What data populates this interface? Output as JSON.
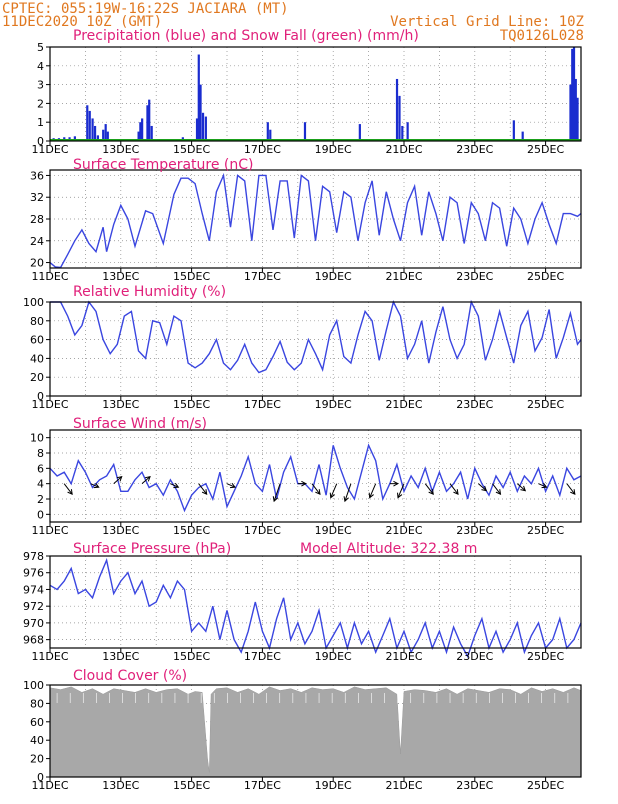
{
  "header": {
    "station": "CPTEC:   055:19W-16:22S   JACIARA (MT)",
    "run": "11DEC2020 10Z (GMT)",
    "grid_note": "Vertical Grid Line: 10Z",
    "code": "TQ0126L028",
    "model_altitude": "Model Altitude: 322.38 m"
  },
  "colors": {
    "header": "#e07820",
    "title": "#e0207a",
    "rain": "#1a2ccf",
    "snow": "#1aa01a",
    "line": "#3a46e0",
    "cloud": "#a8a8a8",
    "axis": "#000000",
    "grid": "#888888"
  },
  "x_ticks": [
    "11DEC",
    "13DEC",
    "15DEC",
    "17DEC",
    "19DEC",
    "21DEC",
    "23DEC",
    "25DEC"
  ],
  "chart_data": [
    {
      "id": "precip",
      "type": "bar",
      "title": "Precipitation (blue) and Snow Fall (green) (mm/h)",
      "x_start_day": 11,
      "x_end_day": 26,
      "ylim": [
        0,
        5
      ],
      "yticks": [
        "0",
        "1",
        "2",
        "3",
        "4",
        "5"
      ],
      "series": [
        {
          "name": "Precipitation",
          "color": "blue",
          "bars": [
            [
              11.1,
              0.15
            ],
            [
              11.25,
              0.15
            ],
            [
              11.4,
              0.2
            ],
            [
              11.55,
              0.2
            ],
            [
              11.7,
              0.25
            ],
            [
              12.05,
              1.9
            ],
            [
              12.12,
              1.6
            ],
            [
              12.2,
              1.2
            ],
            [
              12.27,
              0.8
            ],
            [
              12.35,
              0.3
            ],
            [
              12.5,
              0.6
            ],
            [
              12.57,
              0.9
            ],
            [
              12.63,
              0.5
            ],
            [
              13.5,
              0.5
            ],
            [
              13.55,
              1.0
            ],
            [
              13.6,
              1.2
            ],
            [
              13.75,
              1.9
            ],
            [
              13.8,
              2.2
            ],
            [
              13.87,
              0.8
            ],
            [
              14.75,
              0.2
            ],
            [
              15.0,
              0.1
            ],
            [
              15.15,
              1.2
            ],
            [
              15.2,
              4.6
            ],
            [
              15.25,
              3.0
            ],
            [
              15.32,
              1.5
            ],
            [
              15.4,
              1.3
            ],
            [
              17.15,
              1.0
            ],
            [
              17.22,
              0.6
            ],
            [
              18.2,
              1.0
            ],
            [
              19.75,
              0.9
            ],
            [
              20.8,
              3.3
            ],
            [
              20.87,
              2.4
            ],
            [
              20.95,
              0.8
            ],
            [
              21.1,
              1.0
            ],
            [
              24.1,
              1.1
            ],
            [
              24.35,
              0.5
            ],
            [
              25.7,
              3.0
            ],
            [
              25.75,
              4.9
            ],
            [
              25.8,
              5.0
            ],
            [
              25.85,
              3.3
            ],
            [
              25.9,
              2.3
            ]
          ]
        },
        {
          "name": "Snow Fall",
          "color": "green",
          "values": [
            0
          ]
        }
      ]
    },
    {
      "id": "temp",
      "type": "line",
      "title": "Surface Temperature (nC)",
      "x_start_day": 11,
      "x_end_day": 26,
      "ylim": [
        19,
        37
      ],
      "yticks": [
        "20",
        "24",
        "28",
        "32",
        "36"
      ],
      "x": [
        11.0,
        11.15,
        11.3,
        11.5,
        11.7,
        11.9,
        12.1,
        12.3,
        12.5,
        12.6,
        12.8,
        13.0,
        13.2,
        13.4,
        13.7,
        13.9,
        14.2,
        14.5,
        14.7,
        14.9,
        15.1,
        15.3,
        15.5,
        15.7,
        15.9,
        16.1,
        16.3,
        16.5,
        16.7,
        16.9,
        17.1,
        17.3,
        17.5,
        17.7,
        17.9,
        18.1,
        18.3,
        18.5,
        18.7,
        18.9,
        19.1,
        19.3,
        19.5,
        19.7,
        19.9,
        20.1,
        20.3,
        20.5,
        20.7,
        20.9,
        21.1,
        21.3,
        21.5,
        21.7,
        21.9,
        22.1,
        22.3,
        22.5,
        22.7,
        22.9,
        23.1,
        23.3,
        23.5,
        23.7,
        23.9,
        24.1,
        24.3,
        24.5,
        24.7,
        24.9,
        25.1,
        25.3,
        25.5,
        25.7,
        25.9,
        26.0
      ],
      "y": [
        20,
        19.2,
        19.1,
        21.5,
        24,
        26,
        23.5,
        22,
        26.5,
        22,
        27,
        30.5,
        28,
        23,
        29.5,
        29,
        23.5,
        32.5,
        35.5,
        35.5,
        34.5,
        29,
        24,
        33,
        36,
        26.5,
        36,
        35,
        24,
        36,
        36,
        26,
        35,
        35,
        24.5,
        36,
        35,
        24,
        34,
        33,
        25.5,
        33,
        32,
        24,
        31,
        35,
        25,
        33,
        28,
        24,
        31,
        34,
        25,
        33,
        29,
        24,
        32,
        31,
        23.5,
        31,
        29,
        24,
        31,
        30,
        23,
        30,
        28,
        23.5,
        28,
        31,
        27,
        23.5,
        29,
        29,
        28.5,
        29
      ]
    },
    {
      "id": "rh",
      "type": "line",
      "title": "Relative Humidity (%)",
      "x_start_day": 11,
      "x_end_day": 26,
      "ylim": [
        0,
        100
      ],
      "yticks": [
        "0",
        "20",
        "40",
        "60",
        "80",
        "100"
      ],
      "x": [
        11.0,
        11.3,
        11.5,
        11.7,
        11.9,
        12.1,
        12.3,
        12.5,
        12.7,
        12.9,
        13.1,
        13.3,
        13.5,
        13.7,
        13.9,
        14.1,
        14.3,
        14.5,
        14.7,
        14.9,
        15.1,
        15.3,
        15.5,
        15.7,
        15.9,
        16.1,
        16.3,
        16.5,
        16.7,
        16.9,
        17.1,
        17.3,
        17.5,
        17.7,
        17.9,
        18.1,
        18.3,
        18.5,
        18.7,
        18.9,
        19.1,
        19.3,
        19.5,
        19.7,
        19.9,
        20.1,
        20.3,
        20.5,
        20.7,
        20.9,
        21.1,
        21.3,
        21.5,
        21.7,
        21.9,
        22.1,
        22.3,
        22.5,
        22.7,
        22.9,
        23.1,
        23.3,
        23.5,
        23.7,
        23.9,
        24.1,
        24.3,
        24.5,
        24.7,
        24.9,
        25.1,
        25.3,
        25.5,
        25.7,
        25.9,
        26.0
      ],
      "y": [
        100,
        100,
        85,
        65,
        75,
        100,
        90,
        60,
        45,
        55,
        85,
        90,
        48,
        40,
        80,
        78,
        55,
        85,
        80,
        35,
        30,
        35,
        45,
        60,
        35,
        28,
        38,
        55,
        35,
        25,
        28,
        42,
        58,
        36,
        28,
        35,
        60,
        45,
        28,
        65,
        80,
        42,
        35,
        65,
        90,
        80,
        38,
        70,
        100,
        85,
        40,
        55,
        80,
        35,
        68,
        95,
        60,
        40,
        55,
        100,
        85,
        38,
        60,
        90,
        62,
        35,
        75,
        90,
        48,
        62,
        92,
        40,
        62,
        88,
        55,
        60
      ]
    },
    {
      "id": "wind",
      "type": "line",
      "title": "Surface Wind (m/s)",
      "x_start_day": 11,
      "x_end_day": 26,
      "ylim": [
        -1,
        11
      ],
      "yticks": [
        "0",
        "2",
        "4",
        "6",
        "8",
        "10"
      ],
      "x": [
        11.0,
        11.2,
        11.4,
        11.6,
        11.8,
        12.0,
        12.2,
        12.4,
        12.6,
        12.8,
        13.0,
        13.2,
        13.4,
        13.6,
        13.8,
        14.0,
        14.2,
        14.4,
        14.6,
        14.8,
        15.0,
        15.2,
        15.4,
        15.6,
        15.8,
        16.0,
        16.2,
        16.4,
        16.6,
        16.8,
        17.0,
        17.2,
        17.4,
        17.6,
        17.8,
        18.0,
        18.2,
        18.4,
        18.6,
        18.8,
        19.0,
        19.2,
        19.4,
        19.6,
        19.8,
        20.0,
        20.2,
        20.4,
        20.6,
        20.8,
        21.0,
        21.2,
        21.4,
        21.6,
        21.8,
        22.0,
        22.2,
        22.4,
        22.6,
        22.8,
        23.0,
        23.2,
        23.4,
        23.6,
        23.8,
        24.0,
        24.2,
        24.4,
        24.6,
        24.8,
        25.0,
        25.2,
        25.4,
        25.6,
        25.8,
        26.0
      ],
      "y": [
        6,
        5,
        5.5,
        4,
        7,
        5.5,
        3.5,
        4.5,
        5,
        6.5,
        3,
        3,
        4.5,
        5.5,
        3.5,
        4,
        2.5,
        4.5,
        3,
        0.5,
        2.5,
        3.5,
        4,
        2,
        5.5,
        1,
        3,
        5,
        7.5,
        4,
        3,
        6.5,
        2,
        5.5,
        7.5,
        4,
        4,
        3,
        6.5,
        2.5,
        9,
        6,
        3.5,
        2,
        5.5,
        9,
        7,
        2,
        4,
        6.5,
        3,
        5,
        3.5,
        6,
        3,
        5.5,
        3,
        4,
        5.5,
        2,
        6,
        4,
        2.5,
        5,
        3.5,
        5.5,
        3,
        5,
        4,
        6,
        3,
        5,
        2.5,
        6,
        4.5,
        5
      ],
      "arrows": [
        [
          11.4,
          -3
        ],
        [
          12.15,
          -1
        ],
        [
          12.8,
          2
        ],
        [
          13.6,
          2
        ],
        [
          14.4,
          -1
        ],
        [
          15.2,
          -3
        ],
        [
          16.0,
          -1
        ],
        [
          17.5,
          -5
        ],
        [
          18.0,
          0
        ],
        [
          18.4,
          -3
        ],
        [
          19.1,
          -4
        ],
        [
          19.5,
          -5
        ],
        [
          20.2,
          -4
        ],
        [
          20.6,
          0
        ],
        [
          21.0,
          -4
        ],
        [
          21.6,
          -3
        ],
        [
          22.3,
          -3
        ],
        [
          23.1,
          -2
        ],
        [
          23.5,
          -3
        ],
        [
          24.2,
          -2
        ],
        [
          24.8,
          -1
        ],
        [
          25.6,
          -3
        ]
      ]
    },
    {
      "id": "pres",
      "type": "line",
      "title": "Surface Pressure (hPa)",
      "x_start_day": 11,
      "x_end_day": 26,
      "ylim": [
        967,
        978
      ],
      "yticks": [
        "968",
        "970",
        "972",
        "974",
        "976",
        "978"
      ],
      "x": [
        11.0,
        11.2,
        11.4,
        11.6,
        11.8,
        12.0,
        12.2,
        12.4,
        12.6,
        12.8,
        13.0,
        13.2,
        13.4,
        13.6,
        13.8,
        14.0,
        14.2,
        14.4,
        14.6,
        14.8,
        15.0,
        15.2,
        15.4,
        15.6,
        15.8,
        16.0,
        16.2,
        16.4,
        16.6,
        16.8,
        17.0,
        17.2,
        17.4,
        17.6,
        17.8,
        18.0,
        18.2,
        18.4,
        18.6,
        18.8,
        19.0,
        19.2,
        19.4,
        19.6,
        19.8,
        20.0,
        20.2,
        20.4,
        20.6,
        20.8,
        21.0,
        21.2,
        21.4,
        21.6,
        21.8,
        22.0,
        22.2,
        22.4,
        22.6,
        22.8,
        23.0,
        23.2,
        23.4,
        23.6,
        23.8,
        24.0,
        24.2,
        24.4,
        24.6,
        24.8,
        25.0,
        25.2,
        25.4,
        25.6,
        25.8,
        26.0
      ],
      "y": [
        974.5,
        974,
        975,
        976.5,
        973.5,
        974,
        973,
        975.5,
        977.5,
        973.5,
        975,
        976,
        973.5,
        975,
        972,
        972.5,
        974.5,
        973,
        975,
        974,
        969,
        970,
        969,
        972,
        968,
        971.5,
        968,
        966.5,
        969,
        972.5,
        969,
        967,
        970.5,
        973,
        968,
        970,
        967.5,
        969,
        971.5,
        967,
        968.5,
        970,
        967,
        970,
        967.5,
        969,
        966.5,
        968.5,
        970.5,
        967,
        969,
        966.5,
        968,
        970,
        967,
        969,
        966.5,
        969.5,
        967.5,
        966,
        968.5,
        970.5,
        967,
        969,
        966.5,
        968,
        970,
        966.5,
        968.5,
        970,
        967,
        968,
        970.5,
        967,
        968,
        970
      ]
    },
    {
      "id": "cloud",
      "type": "area",
      "title": "Cloud Cover (%)",
      "x_start_day": 11,
      "x_end_day": 26,
      "ylim": [
        0,
        100
      ],
      "yticks": [
        "0",
        "20",
        "40",
        "60",
        "80",
        "100"
      ],
      "x": [
        11.0,
        11.3,
        11.6,
        11.9,
        12.2,
        12.5,
        12.8,
        13.1,
        13.4,
        13.7,
        14.0,
        14.3,
        14.6,
        14.9,
        15.1,
        15.3,
        15.45,
        15.5,
        15.55,
        15.7,
        16.0,
        16.3,
        16.6,
        16.9,
        17.2,
        17.5,
        17.8,
        18.1,
        18.4,
        18.7,
        19.0,
        19.3,
        19.6,
        19.9,
        20.2,
        20.5,
        20.8,
        20.9,
        21.0,
        21.3,
        21.6,
        21.9,
        22.2,
        22.5,
        22.8,
        23.1,
        23.4,
        23.7,
        24.0,
        24.3,
        24.6,
        24.9,
        25.2,
        25.5,
        25.8,
        26.0
      ],
      "y": [
        97,
        95,
        98,
        92,
        96,
        90,
        96,
        94,
        92,
        96,
        92,
        95,
        96,
        90,
        93,
        92,
        20,
        5,
        90,
        96,
        97,
        92,
        96,
        90,
        98,
        94,
        96,
        92,
        97,
        95,
        96,
        92,
        98,
        95,
        96,
        97,
        90,
        25,
        93,
        95,
        94,
        92,
        96,
        90,
        96,
        94,
        92,
        96,
        95,
        90,
        97,
        93,
        96,
        92,
        97,
        94
      ]
    }
  ]
}
